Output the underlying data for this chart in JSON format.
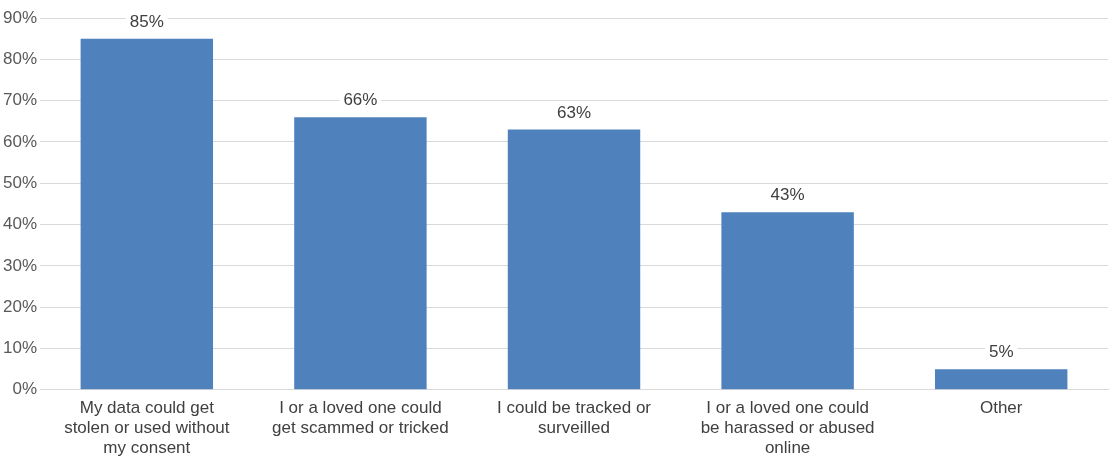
{
  "chart_data": {
    "type": "bar",
    "categories": [
      "My data could get stolen or used without my consent",
      "I or a loved one could get scammed or tricked",
      "I could be tracked or surveilled",
      "I or a loved one could be harassed or abused online",
      "Other"
    ],
    "values": [
      85,
      66,
      63,
      43,
      5
    ],
    "color": "#4f81bd",
    "ylim": [
      0,
      90
    ],
    "yticks": [
      {
        "value": 0,
        "label": "0%"
      },
      {
        "value": 10,
        "label": "10%"
      },
      {
        "value": 20,
        "label": "20%"
      },
      {
        "value": 30,
        "label": "30%"
      },
      {
        "value": 40,
        "label": "40%"
      },
      {
        "value": 50,
        "label": "50%"
      },
      {
        "value": 60,
        "label": "60%"
      },
      {
        "value": 70,
        "label": "70%"
      },
      {
        "value": 80,
        "label": "80%"
      },
      {
        "value": 90,
        "label": "90%"
      }
    ],
    "grid": "y",
    "legend": false,
    "value_labels": [
      "85%",
      "66%",
      "63%",
      "43%",
      "5%"
    ]
  }
}
